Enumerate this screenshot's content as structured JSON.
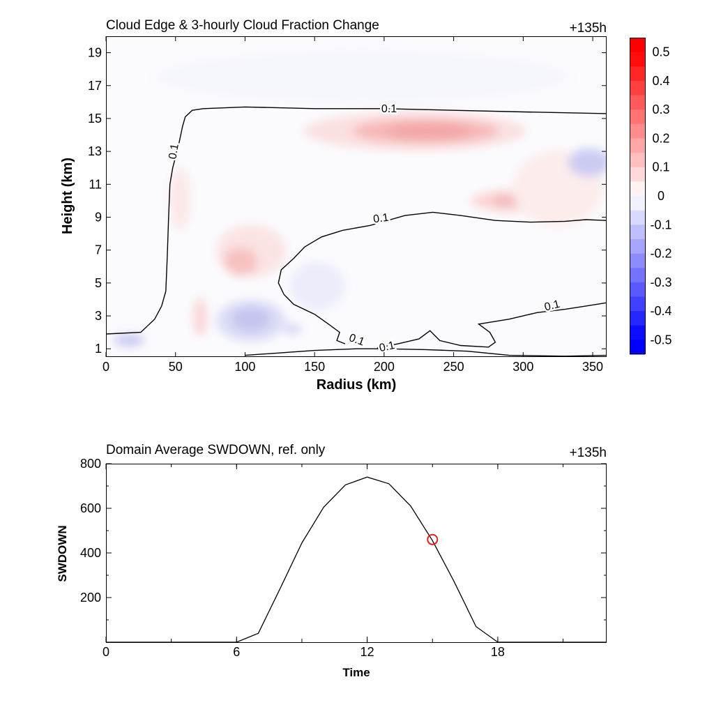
{
  "chart_data": [
    {
      "type": "heatmap",
      "title": "Cloud Edge & 3-hourly Cloud Fraction Change",
      "time_label": "+135h",
      "xlabel": "Radius (km)",
      "ylabel": "Height (km)",
      "xlim": [
        0,
        360
      ],
      "ylim": [
        0.5,
        20
      ],
      "xticks": [
        "0",
        "50",
        "100",
        "150",
        "200",
        "250",
        "300",
        "350"
      ],
      "yticks": [
        "1",
        "3",
        "5",
        "7",
        "9",
        "11",
        "13",
        "15",
        "17",
        "19"
      ],
      "colorbar": {
        "range": [
          -0.55,
          0.55
        ],
        "tick_labels": [
          "0.5",
          "0.4",
          "0.3",
          "0.2",
          "0.1",
          "0",
          "-0.1",
          "-0.2",
          "-0.3",
          "-0.4",
          "-0.5"
        ],
        "negative_color": "#0000ff",
        "positive_color": "#ff0000"
      },
      "contour_level_label": "0.1",
      "contours": [
        {
          "label": "0.1",
          "points": [
            [
              0,
              1.9
            ],
            [
              25,
              2.0
            ],
            [
              35,
              2.8
            ],
            [
              40,
              3.6
            ],
            [
              43,
              4.5
            ],
            [
              44,
              6.5
            ],
            [
              45,
              9
            ],
            [
              46,
              11
            ],
            [
              48,
              12
            ],
            [
              52,
              13.3
            ],
            [
              55,
              14.5
            ],
            [
              57,
              15.1
            ],
            [
              62,
              15.5
            ],
            [
              70,
              15.6
            ],
            [
              100,
              15.7
            ],
            [
              150,
              15.6
            ],
            [
              200,
              15.6
            ],
            [
              250,
              15.5
            ],
            [
              300,
              15.4
            ],
            [
              360,
              15.3
            ]
          ]
        },
        {
          "label": "0.1",
          "points": [
            [
              100,
              0.6
            ],
            [
              150,
              0.9
            ],
            [
              180,
              1.0
            ],
            [
              200,
              1.0
            ],
            [
              230,
              0.95
            ],
            [
              260,
              0.85
            ],
            [
              290,
              0.6
            ],
            [
              330,
              0.55
            ],
            [
              360,
              0.6
            ]
          ]
        },
        {
          "label": "0.1",
          "points": [
            [
              172,
              1.3
            ],
            [
              166,
              1.5
            ],
            [
              168,
              2.0
            ],
            [
              160,
              2.5
            ],
            [
              150,
              3.1
            ],
            [
              135,
              3.7
            ],
            [
              128,
              4.3
            ],
            [
              124,
              5.0
            ],
            [
              126,
              5.8
            ],
            [
              135,
              6.5
            ],
            [
              143,
              7.2
            ],
            [
              155,
              7.8
            ],
            [
              170,
              8.2
            ],
            [
              190,
              8.5
            ],
            [
              215,
              9.1
            ],
            [
              235,
              9.3
            ],
            [
              255,
              9.1
            ],
            [
              280,
              8.8
            ],
            [
              305,
              8.7
            ],
            [
              330,
              8.75
            ],
            [
              345,
              8.85
            ],
            [
              360,
              8.8
            ]
          ]
        },
        {
          "label": "0.1",
          "points": [
            [
              195,
              1.05
            ],
            [
              210,
              1.3
            ],
            [
              225,
              1.6
            ],
            [
              233,
              2.1
            ],
            [
              240,
              1.5
            ],
            [
              255,
              1.2
            ],
            [
              275,
              1.1
            ],
            [
              280,
              1.4
            ],
            [
              276,
              2.0
            ],
            [
              268,
              2.5
            ],
            [
              290,
              2.8
            ],
            [
              310,
              3.2
            ],
            [
              330,
              3.4
            ],
            [
              345,
              3.6
            ],
            [
              360,
              3.8
            ]
          ]
        }
      ]
    },
    {
      "type": "line",
      "title": "Domain Average SWDOWN, ref. only",
      "time_label": "+135h",
      "xlabel": "Time",
      "ylabel": "SWDOWN",
      "xlim": [
        0,
        23
      ],
      "ylim": [
        0,
        800
      ],
      "xticks": [
        "0",
        "6",
        "12",
        "18"
      ],
      "yticks": [
        "200",
        "400",
        "600",
        "800"
      ],
      "x": [
        0,
        1,
        2,
        3,
        4,
        5,
        6,
        7,
        8,
        9,
        10,
        11,
        12,
        13,
        14,
        15,
        16,
        17,
        18,
        19,
        20,
        21,
        22,
        23
      ],
      "values": [
        0,
        0,
        0,
        0,
        0,
        0,
        0,
        40,
        240,
        445,
        605,
        705,
        740,
        710,
        610,
        455,
        270,
        70,
        0,
        0,
        0,
        0,
        0,
        0
      ],
      "marker": {
        "x": 15,
        "y": 460,
        "color": "#e02020"
      }
    }
  ]
}
